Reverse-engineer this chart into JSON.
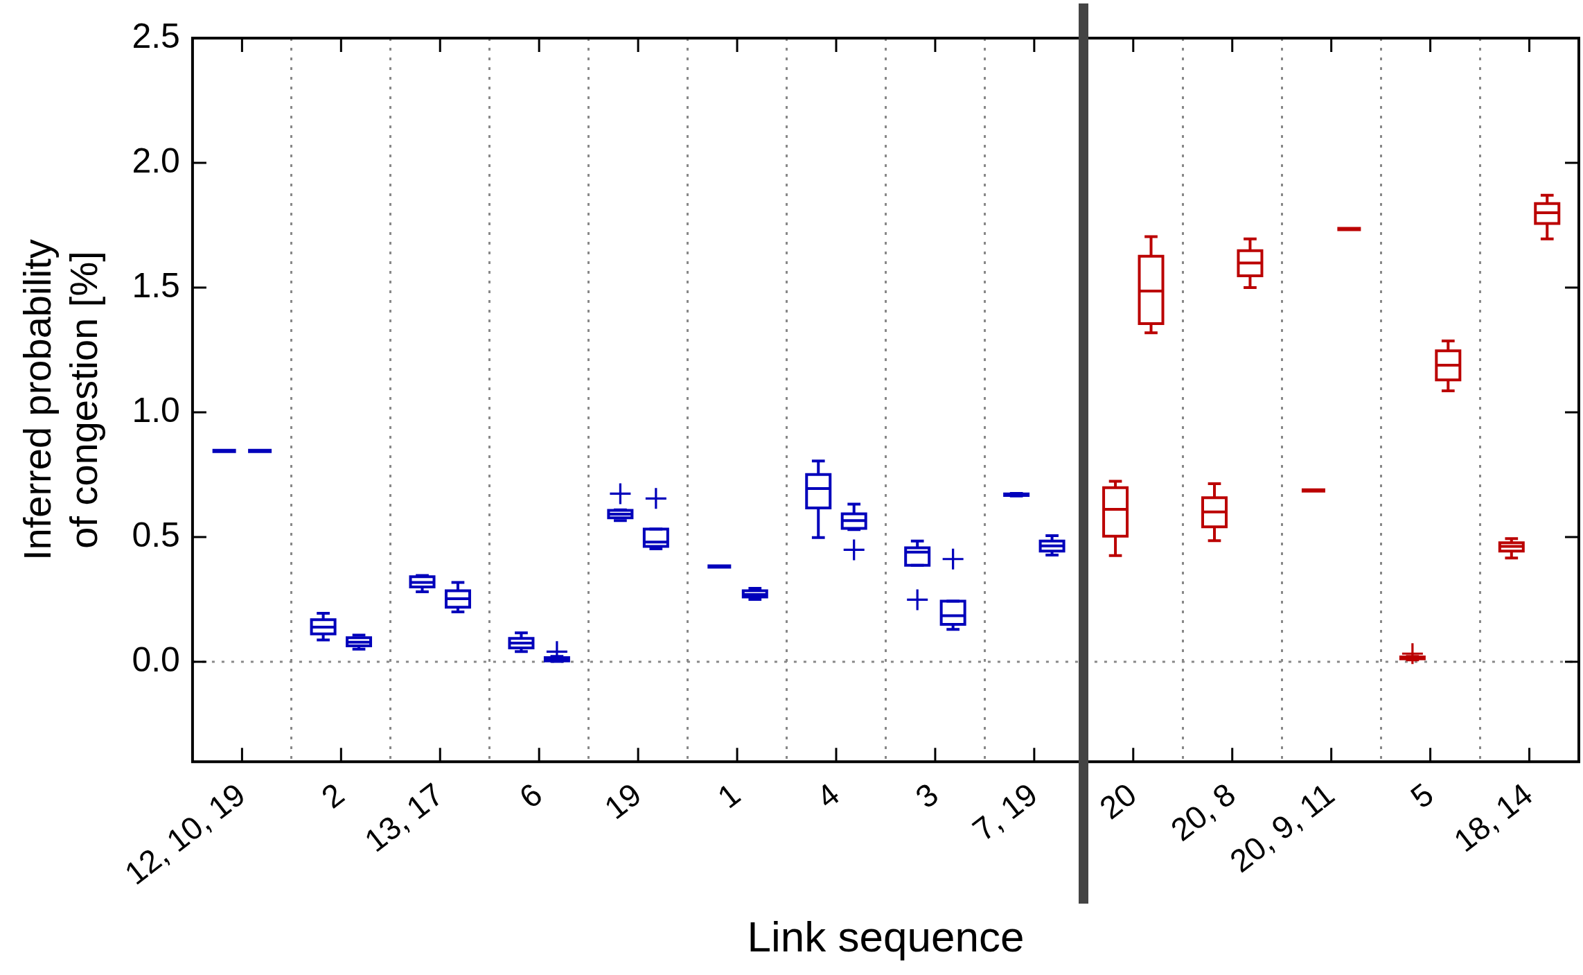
{
  "chart_data": {
    "type": "box",
    "xlabel": "Link sequence",
    "ylabel": "Inferred probability\nof congestion [%]",
    "categories": [
      "12, 10, 19",
      "2",
      "13, 17",
      "6",
      "19",
      "1",
      "4",
      "3",
      "7, 19",
      "20",
      "20, 8",
      "20, 9, 11",
      "5",
      "18, 14"
    ],
    "ylim": [
      -0.4,
      2.5
    ],
    "yticks": [
      {
        "value": 0,
        "label": "0.0"
      },
      0.5,
      {
        "value": 1,
        "label": "1.0"
      },
      1.5,
      {
        "value": 2,
        "label": "2.0"
      },
      2.5
    ],
    "grid": "x",
    "marker": "cross",
    "ref_lines": [
      {
        "axis": "y",
        "value": 0,
        "color": "#888888",
        "line_style": "dotted"
      }
    ],
    "series": [
      {
        "colors": [
          "#0000bb",
          "#0000bb",
          "#0000bb",
          "#0000bb",
          "#0000bb",
          "#0000bb",
          "#0000bb",
          "#0000bb",
          "#0000bb",
          "#bb0000",
          "#bb0000",
          "#bb0000",
          "#bb0000",
          "#bb0000"
        ],
        "boxes": [
          {
            "low": 0.845,
            "q1": 0.845,
            "median": 0.845,
            "q3": 0.845,
            "high": 0.845
          },
          {
            "low": 0.088,
            "q1": 0.112,
            "median": 0.139,
            "q3": 0.169,
            "high": 0.195
          },
          {
            "low": 0.281,
            "q1": 0.3,
            "median": 0.318,
            "q3": 0.341,
            "high": 0.346
          },
          {
            "low": 0.041,
            "q1": 0.056,
            "median": 0.075,
            "q3": 0.094,
            "high": 0.116
          },
          {
            "low": 0.566,
            "q1": 0.577,
            "median": 0.592,
            "q3": 0.607,
            "high": 0.609,
            "outliers": [
              0.674
            ]
          },
          {
            "low": 0.382,
            "q1": 0.382,
            "median": 0.382,
            "q3": 0.382,
            "high": 0.382
          },
          {
            "low": 0.498,
            "q1": 0.617,
            "median": 0.695,
            "q3": 0.751,
            "high": 0.805
          },
          {
            "low": 0.387,
            "q1": 0.387,
            "median": 0.44,
            "q3": 0.457,
            "high": 0.484,
            "outliers": [
              0.249
            ]
          },
          {
            "low": 0.665,
            "q1": 0.667,
            "median": 0.671,
            "q3": 0.673,
            "high": 0.675
          },
          {
            "low": 0.426,
            "q1": 0.504,
            "median": 0.611,
            "q3": 0.698,
            "high": 0.724
          },
          {
            "low": 0.486,
            "q1": 0.541,
            "median": 0.601,
            "q3": 0.658,
            "high": 0.714
          },
          {
            "low": 0.687,
            "q1": 0.687,
            "median": 0.687,
            "q3": 0.687,
            "high": 0.687
          },
          {
            "low": 0.008,
            "q1": 0.012,
            "median": 0.016,
            "q3": 0.02,
            "high": 0.022,
            "outliers": [
              0.033
            ]
          },
          {
            "low": 0.416,
            "q1": 0.444,
            "median": 0.463,
            "q3": 0.477,
            "high": 0.494
          }
        ]
      },
      {
        "colors": [
          "#0000bb",
          "#0000bb",
          "#0000bb",
          "#0000bb",
          "#0000bb",
          "#0000bb",
          "#0000bb",
          "#0000bb",
          "#0000bb",
          "#bb0000",
          "#bb0000",
          "#bb0000",
          "#bb0000",
          "#bb0000"
        ],
        "boxes": [
          {
            "low": 0.845,
            "q1": 0.845,
            "median": 0.845,
            "q3": 0.845,
            "high": 0.845
          },
          {
            "low": 0.051,
            "q1": 0.064,
            "median": 0.079,
            "q3": 0.097,
            "high": 0.107
          },
          {
            "low": 0.2,
            "q1": 0.219,
            "median": 0.253,
            "q3": 0.285,
            "high": 0.318
          },
          {
            "low": 0.002,
            "q1": 0.004,
            "median": 0.011,
            "q3": 0.017,
            "high": 0.022,
            "outliers": [
              0.041
            ]
          },
          {
            "low": 0.453,
            "q1": 0.463,
            "median": 0.48,
            "q3": 0.532,
            "high": 0.532,
            "outliers": [
              0.655
            ]
          },
          {
            "low": 0.25,
            "q1": 0.26,
            "median": 0.27,
            "q3": 0.285,
            "high": 0.295
          },
          {
            "low": 0.53,
            "q1": 0.535,
            "median": 0.566,
            "q3": 0.593,
            "high": 0.632,
            "outliers": [
              0.449
            ]
          },
          {
            "low": 0.13,
            "q1": 0.15,
            "median": 0.185,
            "q3": 0.243,
            "high": 0.243,
            "outliers": [
              0.412
            ]
          },
          {
            "low": 0.428,
            "q1": 0.444,
            "median": 0.465,
            "q3": 0.484,
            "high": 0.506
          },
          {
            "low": 1.319,
            "q1": 1.356,
            "median": 1.486,
            "q3": 1.626,
            "high": 1.704
          },
          {
            "low": 1.5,
            "q1": 1.547,
            "median": 1.599,
            "q3": 1.648,
            "high": 1.695
          },
          {
            "low": 1.735,
            "q1": 1.735,
            "median": 1.735,
            "q3": 1.735,
            "high": 1.735
          },
          {
            "low": 1.086,
            "q1": 1.13,
            "median": 1.189,
            "q3": 1.247,
            "high": 1.286
          },
          {
            "low": 1.695,
            "q1": 1.757,
            "median": 1.8,
            "q3": 1.837,
            "high": 1.87
          }
        ]
      }
    ]
  }
}
